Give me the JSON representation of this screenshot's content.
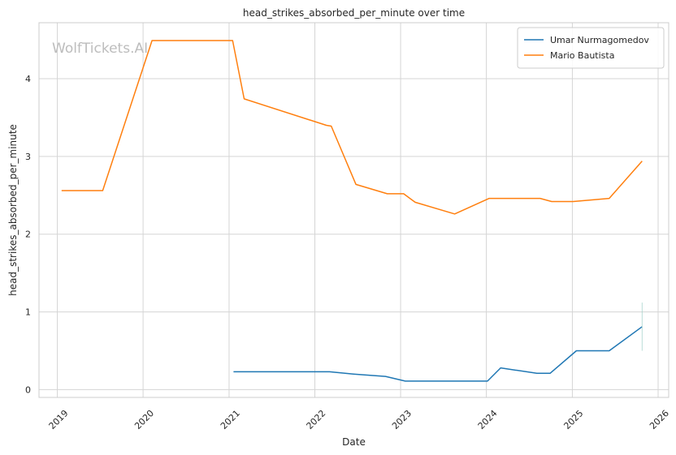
{
  "watermark": "WolfTickets.AI",
  "chart_data": {
    "type": "line",
    "title": "head_strikes_absorbed_per_minute over time",
    "xlabel": "Date",
    "ylabel": "head_strikes_absorbed_per_minute",
    "xlim": [
      "2018-10-15",
      "2026-02-15"
    ],
    "ylim": [
      -0.1,
      4.72
    ],
    "x_ticks": [
      "2019",
      "2020",
      "2021",
      "2022",
      "2023",
      "2024",
      "2025",
      "2026"
    ],
    "y_ticks": [
      "0",
      "1",
      "2",
      "3",
      "4"
    ],
    "grid": true,
    "legend_position": "top-right",
    "series": [
      {
        "name": "Umar Nurmagomedov",
        "color": "#1f77b4",
        "points": [
          [
            "2021-01-20",
            0.23
          ],
          [
            "2022-03-05",
            0.23
          ],
          [
            "2022-06-15",
            0.2
          ],
          [
            "2022-10-29",
            0.17
          ],
          [
            "2023-01-21",
            0.11
          ],
          [
            "2023-08-05",
            0.11
          ],
          [
            "2024-01-06",
            0.11
          ],
          [
            "2024-03-02",
            0.28
          ],
          [
            "2024-08-03",
            0.21
          ],
          [
            "2024-09-28",
            0.21
          ],
          [
            "2025-01-18",
            0.5
          ],
          [
            "2025-06-07",
            0.5
          ],
          [
            "2025-10-25",
            0.81
          ]
        ]
      },
      {
        "name": "Mario Bautista",
        "color": "#ff7f0e",
        "points": [
          [
            "2019-01-19",
            2.56
          ],
          [
            "2019-07-13",
            2.56
          ],
          [
            "2020-02-08",
            4.49
          ],
          [
            "2021-01-16",
            4.49
          ],
          [
            "2021-03-06",
            3.74
          ],
          [
            "2022-02-19",
            3.4
          ],
          [
            "2022-03-12",
            3.39
          ],
          [
            "2022-06-25",
            2.64
          ],
          [
            "2022-11-05",
            2.52
          ],
          [
            "2023-01-14",
            2.52
          ],
          [
            "2023-03-04",
            2.41
          ],
          [
            "2023-08-19",
            2.26
          ],
          [
            "2024-01-13",
            2.46
          ],
          [
            "2024-08-17",
            2.46
          ],
          [
            "2024-10-05",
            2.42
          ],
          [
            "2025-01-04",
            2.42
          ],
          [
            "2025-06-07",
            2.46
          ],
          [
            "2025-10-25",
            2.94
          ]
        ]
      }
    ]
  }
}
